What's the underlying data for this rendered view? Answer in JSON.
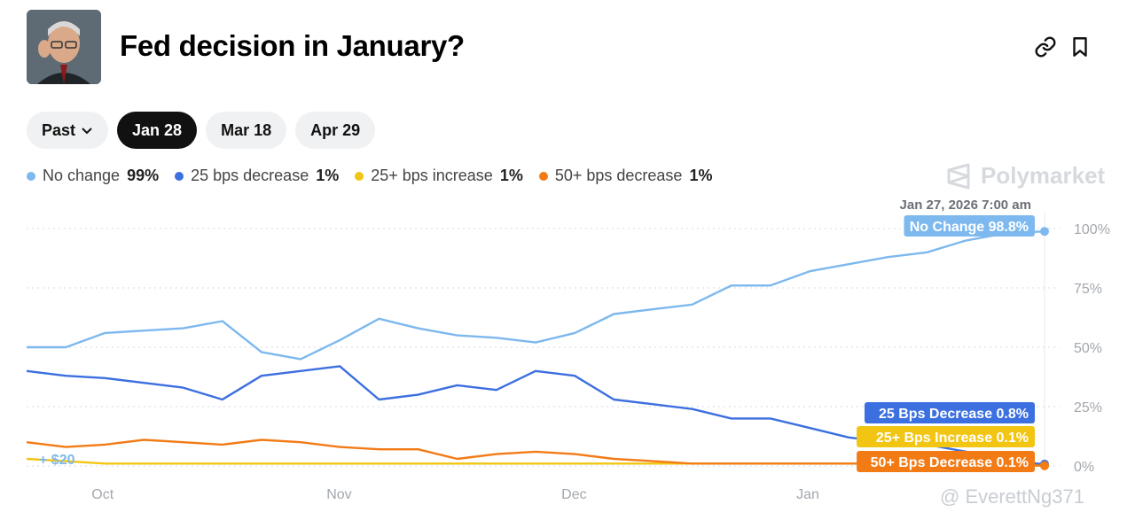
{
  "header": {
    "title": "Fed decision in January?",
    "avatar_icon": "fed-chair-portrait",
    "link_icon": "link-icon",
    "bookmark_icon": "bookmark-icon"
  },
  "tabs": [
    {
      "label": "Past",
      "active": false,
      "has_chevron": true
    },
    {
      "label": "Jan 28",
      "active": true
    },
    {
      "label": "Mar 18",
      "active": false
    },
    {
      "label": "Apr 29",
      "active": false
    }
  ],
  "legend": [
    {
      "label": "No change",
      "value": "99%",
      "color": "#7db8ee"
    },
    {
      "label": "25 bps decrease",
      "value": "1%",
      "color": "#3c6fe0"
    },
    {
      "label": "25+ bps increase",
      "value": "1%",
      "color": "#f2c512"
    },
    {
      "label": "50+ bps decrease",
      "value": "1%",
      "color": "#f27b16"
    }
  ],
  "brand": "Polymarket",
  "watermark": "@ EverettNg371",
  "chart_data": {
    "type": "line",
    "hover_timestamp": "Jan 27, 2026 7:00 am",
    "x_tick_labels": [
      "Oct",
      "Nov",
      "Dec",
      "Jan"
    ],
    "y_tick_labels": [
      "100%",
      "75%",
      "50%",
      "25%",
      "0%"
    ],
    "ylim": [
      0,
      100
    ],
    "grid": true,
    "bet_marker": "+ $20",
    "end_labels": [
      {
        "text": "No Change 98.8%",
        "color": "#7db8ee"
      },
      {
        "text": "25 Bps Decrease 0.8%",
        "color": "#3c6fe0"
      },
      {
        "text": "25+ Bps Increase 0.1%",
        "color": "#f2c512"
      },
      {
        "text": "50+ Bps Decrease 0.1%",
        "color": "#f27b16"
      }
    ],
    "x": [
      "Sep 21",
      "Sep 26",
      "Oct 1",
      "Oct 6",
      "Oct 11",
      "Oct 16",
      "Oct 21",
      "Oct 26",
      "Nov 1",
      "Nov 6",
      "Nov 11",
      "Nov 16",
      "Nov 21",
      "Nov 26",
      "Dec 1",
      "Dec 6",
      "Dec 11",
      "Dec 16",
      "Dec 21",
      "Dec 26",
      "Jan 1",
      "Jan 6",
      "Jan 11",
      "Jan 16",
      "Jan 21",
      "Jan 26",
      "Jan 27"
    ],
    "series": [
      {
        "name": "No Change",
        "color": "#7db8ee",
        "values": [
          50,
          50,
          56,
          57,
          58,
          61,
          48,
          45,
          53,
          62,
          58,
          55,
          54,
          52,
          56,
          64,
          66,
          68,
          76,
          76,
          82,
          85,
          88,
          90,
          95,
          98,
          98.8
        ]
      },
      {
        "name": "25 Bps Decrease",
        "color": "#3c6fe0",
        "values": [
          40,
          38,
          37,
          35,
          33,
          28,
          38,
          40,
          42,
          28,
          30,
          34,
          32,
          40,
          38,
          28,
          26,
          24,
          20,
          20,
          16,
          12,
          10,
          9,
          6,
          2,
          0.8
        ]
      },
      {
        "name": "25+ Bps Increase",
        "color": "#f2c512",
        "values": [
          3,
          2,
          1,
          1,
          1,
          1,
          1,
          1,
          1,
          1,
          1,
          1,
          1,
          1,
          1,
          1,
          1,
          1,
          1,
          1,
          1,
          1,
          1,
          1,
          0.5,
          0.2,
          0.1
        ]
      },
      {
        "name": "50+ Bps Decrease",
        "color": "#f27b16",
        "values": [
          10,
          8,
          9,
          11,
          10,
          9,
          11,
          10,
          8,
          7,
          7,
          3,
          5,
          6,
          5,
          3,
          2,
          1,
          1,
          1,
          1,
          1,
          1,
          1,
          1,
          0.5,
          0.1
        ]
      }
    ]
  }
}
